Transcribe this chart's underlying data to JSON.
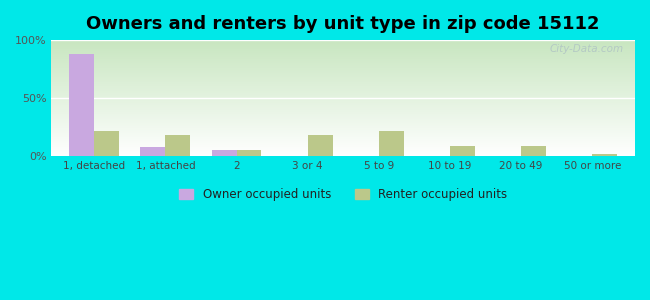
{
  "title": "Owners and renters by unit type in zip code 15112",
  "categories": [
    "1, detached",
    "1, attached",
    "2",
    "3 or 4",
    "5 to 9",
    "10 to 19",
    "20 to 49",
    "50 or more"
  ],
  "owner_values": [
    88,
    8,
    5,
    0,
    0,
    0,
    0,
    0
  ],
  "renter_values": [
    22,
    18,
    5,
    18,
    22,
    9,
    9,
    2
  ],
  "owner_color": "#c9a8e0",
  "renter_color": "#bbc88a",
  "outer_bg": "#00e8e8",
  "plot_bg_top": "#c8e6c0",
  "plot_bg_bottom": "#f5fff5",
  "ylim": [
    0,
    100
  ],
  "yticks": [
    0,
    50,
    100
  ],
  "ytick_labels": [
    "0%",
    "50%",
    "100%"
  ],
  "title_fontsize": 13,
  "legend_owner": "Owner occupied units",
  "legend_renter": "Renter occupied units",
  "bar_width": 0.35,
  "watermark": "City-Data.com"
}
